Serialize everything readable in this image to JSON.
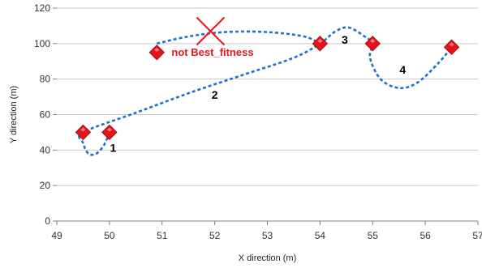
{
  "chart_data": {
    "type": "scatter",
    "xlabel": "X direction (m)",
    "ylabel": "Y direction (m)",
    "xlim": [
      49,
      57
    ],
    "ylim": [
      0,
      120
    ],
    "x_ticks": [
      "49",
      "50",
      "51",
      "52",
      "53",
      "54",
      "55",
      "56",
      "57"
    ],
    "y_ticks": [
      "0",
      "20",
      "40",
      "60",
      "80",
      "100",
      "120"
    ],
    "grid": "horizontal",
    "marker_color": "#e8141b",
    "path_color": "#1f6fd1",
    "points": [
      {
        "x": 49.5,
        "y": 50
      },
      {
        "x": 50.0,
        "y": 50
      },
      {
        "x": 50.9,
        "y": 95
      },
      {
        "x": 54.0,
        "y": 100
      },
      {
        "x": 55.0,
        "y": 100
      },
      {
        "x": 56.5,
        "y": 98
      }
    ],
    "path": [
      [
        50.0,
        50
      ],
      [
        49.9,
        43
      ],
      [
        49.75,
        38
      ],
      [
        49.6,
        38
      ],
      [
        49.5,
        44
      ],
      [
        49.5,
        50
      ],
      [
        50.5,
        61
      ],
      [
        51.5,
        72
      ],
      [
        52.5,
        82
      ],
      [
        53.5,
        92
      ],
      [
        54.0,
        100
      ],
      [
        54.3,
        107
      ],
      [
        54.55,
        109
      ],
      [
        54.85,
        104
      ],
      [
        55.0,
        100
      ],
      [
        54.95,
        92
      ],
      [
        55.15,
        80
      ],
      [
        55.5,
        75
      ],
      [
        55.85,
        78
      ],
      [
        56.25,
        89
      ],
      [
        56.5,
        98
      ]
    ],
    "rejected_path": [
      [
        50.9,
        100
      ],
      [
        51.5,
        104
      ],
      [
        52.2,
        106.5
      ],
      [
        53.0,
        106.5
      ],
      [
        53.7,
        104
      ],
      [
        54.0,
        100
      ]
    ],
    "segment_labels": [
      {
        "text": "1",
        "x": 50.07,
        "y": 39
      },
      {
        "text": "2",
        "x": 52.0,
        "y": 69
      },
      {
        "text": "3",
        "x": 54.47,
        "y": 100
      },
      {
        "text": "4",
        "x": 55.57,
        "y": 83
      }
    ],
    "annotation": {
      "text": "not Best_fitness",
      "x": 51.18,
      "y": 93,
      "cross_x": 51.92,
      "cross_y": 107,
      "color": "#e8141b"
    }
  }
}
